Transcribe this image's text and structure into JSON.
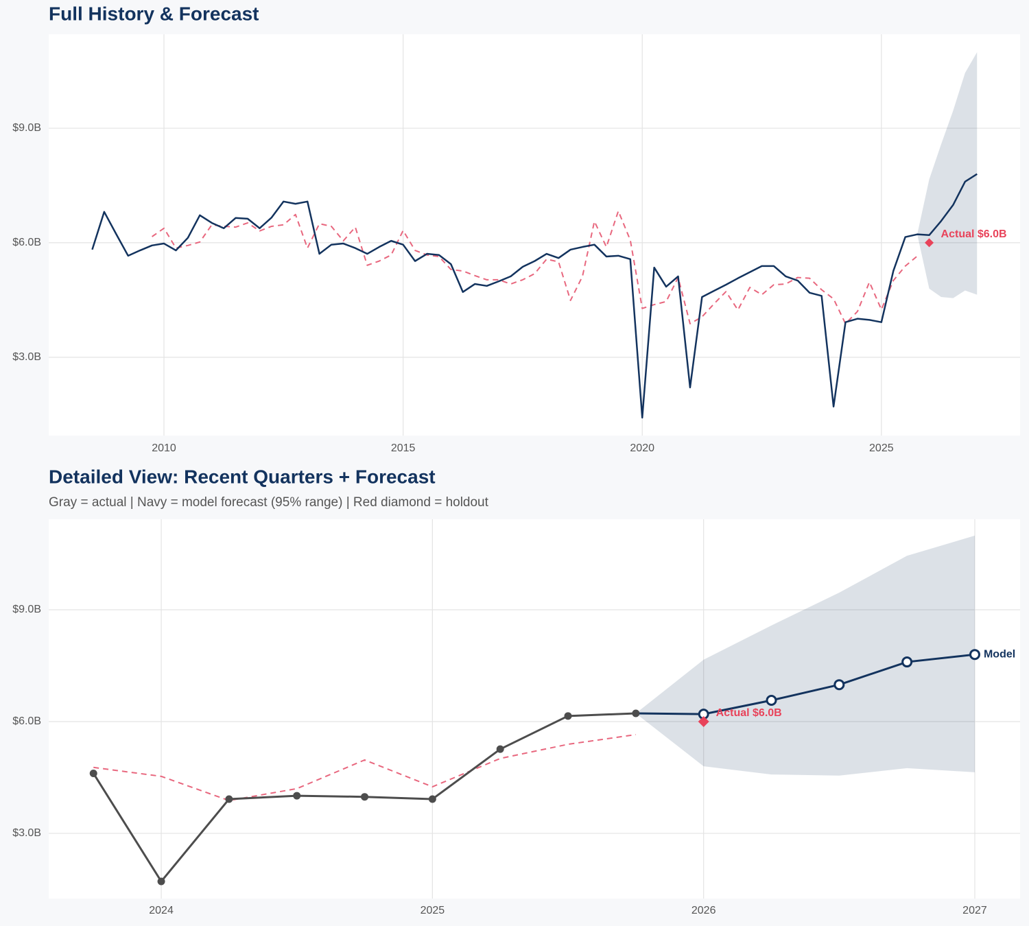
{
  "chart_data": [
    {
      "type": "line",
      "title": "Full History & Forecast",
      "xlim": [
        2007.59,
        2027.9
      ],
      "ylim": [
        0.95,
        11.46
      ],
      "xticks": [
        2010,
        2015,
        2020,
        2025
      ],
      "yticks": [
        {
          "value": 3,
          "label": "$3.0B"
        },
        {
          "value": 6,
          "label": "$6.0B"
        },
        {
          "value": 9,
          "label": "$9.0B"
        }
      ],
      "grid": true,
      "band": {
        "color": "#13335e",
        "x": [
          2025.75,
          2026,
          2026.25,
          2026.5,
          2026.75,
          2027
        ],
        "lower": [
          6.22,
          4.8,
          4.58,
          4.55,
          4.75,
          4.64
        ],
        "upper": [
          6.22,
          7.66,
          8.58,
          9.46,
          10.45,
          10.99
        ]
      },
      "series": [
        {
          "color": "#e8677e",
          "dash": true,
          "x": [
            2009.75,
            2010,
            2010.25,
            2010.5,
            2010.75,
            2011,
            2011.25,
            2011.5,
            2011.75,
            2012,
            2012.25,
            2012.5,
            2012.75,
            2013,
            2013.25,
            2013.5,
            2013.75,
            2014,
            2014.25,
            2014.5,
            2014.75,
            2015,
            2015.25,
            2015.5,
            2015.75,
            2016,
            2016.25,
            2016.5,
            2016.75,
            2017,
            2017.25,
            2017.5,
            2017.75,
            2018,
            2018.25,
            2018.5,
            2018.75,
            2019,
            2019.25,
            2019.5,
            2019.75,
            2020,
            2020.25,
            2020.5,
            2020.75,
            2021,
            2021.25,
            2021.5,
            2021.75,
            2022,
            2022.25,
            2022.5,
            2022.75,
            2023,
            2023.25,
            2023.5,
            2023.75,
            2024,
            2024.25,
            2024.5,
            2024.75,
            2025,
            2025.25,
            2025.5,
            2025.75
          ],
          "values": [
            6.16,
            6.38,
            5.86,
            5.93,
            6.02,
            6.47,
            6.43,
            6.41,
            6.52,
            6.31,
            6.43,
            6.47,
            6.74,
            5.86,
            6.5,
            6.43,
            6.05,
            6.41,
            5.41,
            5.52,
            5.68,
            6.32,
            5.8,
            5.68,
            5.64,
            5.3,
            5.26,
            5.14,
            5.03,
            5.03,
            4.92,
            5.03,
            5.19,
            5.57,
            5.5,
            4.49,
            5.12,
            6.56,
            5.89,
            6.83,
            6.07,
            4.28,
            4.38,
            4.46,
            5.09,
            3.88,
            4.06,
            4.4,
            4.72,
            4.24,
            4.83,
            4.64,
            4.9,
            4.92,
            5.09,
            5.07,
            4.77,
            4.53,
            3.88,
            4.2,
            4.97,
            4.25,
            5.01,
            5.39,
            5.65
          ]
        },
        {
          "color": "#13335e",
          "x": [
            2008.5,
            2008.75,
            2009,
            2009.25,
            2009.5,
            2009.75,
            2010,
            2010.25,
            2010.5,
            2010.75,
            2011,
            2011.25,
            2011.5,
            2011.75,
            2012,
            2012.25,
            2012.5,
            2012.75,
            2013,
            2013.25,
            2013.5,
            2013.75,
            2014,
            2014.25,
            2014.5,
            2014.75,
            2015,
            2015.25,
            2015.5,
            2015.75,
            2016,
            2016.25,
            2016.5,
            2016.75,
            2017,
            2017.25,
            2017.5,
            2017.75,
            2018,
            2018.25,
            2018.5,
            2018.75,
            2019,
            2019.25,
            2019.5,
            2019.75,
            2020,
            2020.25,
            2020.5,
            2020.75,
            2021,
            2021.25,
            2021.5,
            2021.75,
            2022,
            2022.25,
            2022.5,
            2022.75,
            2023,
            2023.25,
            2023.5,
            2023.75,
            2024,
            2024.25,
            2024.5,
            2024.75,
            2025,
            2025.25,
            2025.5,
            2025.75,
            2026,
            2026.25,
            2026.5,
            2026.75,
            2027
          ],
          "values": [
            5.82,
            6.81,
            6.23,
            5.66,
            5.8,
            5.93,
            5.98,
            5.8,
            6.13,
            6.72,
            6.52,
            6.38,
            6.65,
            6.63,
            6.38,
            6.66,
            7.08,
            7.02,
            7.08,
            5.71,
            5.95,
            5.98,
            5.86,
            5.71,
            5.89,
            6.05,
            5.95,
            5.52,
            5.71,
            5.68,
            5.44,
            4.71,
            4.92,
            4.87,
            4.99,
            5.12,
            5.37,
            5.52,
            5.71,
            5.6,
            5.82,
            5.89,
            5.95,
            5.64,
            5.66,
            5.57,
            1.42,
            5.35,
            4.85,
            5.12,
            2.21,
            4.58,
            4.74,
            4.9,
            5.07,
            5.23,
            5.39,
            5.39,
            5.12,
            5.01,
            4.69,
            4.61,
            1.71,
            3.92,
            4.01,
            3.98,
            3.92,
            5.26,
            6.15,
            6.22,
            6.2,
            6.57,
            6.99,
            7.6,
            7.8
          ]
        }
      ],
      "holdout": {
        "x": 2026,
        "value": 6.0,
        "label": "Actual $6.0B",
        "color": "#e8435a"
      }
    },
    {
      "type": "line",
      "title": "Detailed View: Recent Quarters + Forecast",
      "subtitle": "Gray = actual  |  Navy = model forecast (95% range)  |  Red diamond = holdout",
      "xlim": [
        2023.585,
        2027.167
      ],
      "ylim": [
        1.25,
        11.43
      ],
      "xticks": [
        2024,
        2025,
        2026,
        2027
      ],
      "yticks": [
        {
          "value": 3,
          "label": "$3.0B"
        },
        {
          "value": 6,
          "label": "$6.0B"
        },
        {
          "value": 9,
          "label": "$9.0B"
        }
      ],
      "grid": true,
      "band": {
        "color": "#13335e",
        "x": [
          2025.75,
          2026,
          2026.25,
          2026.5,
          2026.75,
          2027
        ],
        "lower": [
          6.22,
          4.8,
          4.58,
          4.55,
          4.75,
          4.64
        ],
        "upper": [
          6.22,
          7.66,
          8.58,
          9.46,
          10.45,
          10.99
        ]
      },
      "series": [
        {
          "color": "#e8677e",
          "dash": true,
          "x": [
            2023.75,
            2024,
            2024.25,
            2024.5,
            2024.75,
            2025,
            2025.25,
            2025.5,
            2025.75
          ],
          "values": [
            4.77,
            4.53,
            3.88,
            4.2,
            4.97,
            4.25,
            5.01,
            5.39,
            5.65
          ]
        },
        {
          "color": "#4d4d4d",
          "markers": "filled",
          "x": [
            2023.75,
            2024,
            2024.25,
            2024.5,
            2024.75,
            2025,
            2025.25,
            2025.5,
            2025.75
          ],
          "values": [
            4.61,
            1.71,
            3.92,
            4.01,
            3.98,
            3.92,
            5.26,
            6.15,
            6.22
          ]
        },
        {
          "color": "#13335e",
          "markers": "hollow",
          "end_label": "Model",
          "x": [
            2025.75,
            2026,
            2026.25,
            2026.5,
            2026.75,
            2027
          ],
          "values": [
            6.22,
            6.2,
            6.57,
            6.99,
            7.6,
            7.8
          ]
        }
      ],
      "holdout": {
        "x": 2026,
        "value": 6.0,
        "label": "Actual $6.0B",
        "color": "#e8435a"
      }
    }
  ]
}
